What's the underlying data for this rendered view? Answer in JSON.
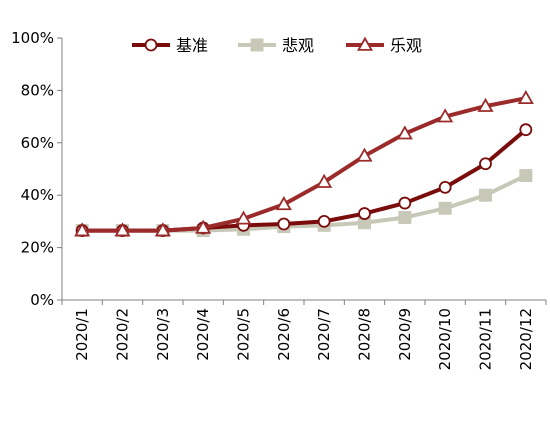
{
  "chart_data": {
    "type": "line",
    "title": "",
    "xlabel": "",
    "ylabel": "",
    "categories": [
      "2020/1",
      "2020/2",
      "2020/3",
      "2020/4",
      "2020/5",
      "2020/6",
      "2020/7",
      "2020/8",
      "2020/9",
      "2020/10",
      "2020/11",
      "2020/12"
    ],
    "y_ticks": [
      "0%",
      "20%",
      "40%",
      "60%",
      "80%",
      "100%"
    ],
    "ylim": [
      0,
      100
    ],
    "grid": false,
    "legend_position": "top",
    "series": [
      {
        "name": "基准",
        "marker": "circle",
        "color": "#7b0c0c",
        "values": [
          26.5,
          26.5,
          26.5,
          27.5,
          28.5,
          29,
          30,
          33,
          37,
          43,
          52,
          65
        ]
      },
      {
        "name": "悲观",
        "marker": "square",
        "color": "#c8c8b8",
        "values": [
          26.5,
          26.5,
          26.5,
          26.5,
          27,
          28,
          28.5,
          29.5,
          31.5,
          35,
          40,
          47.5
        ]
      },
      {
        "name": "乐观",
        "marker": "triangle",
        "color": "#9b2b2b",
        "values": [
          26.5,
          26.5,
          26.5,
          27.5,
          31,
          36.5,
          45,
          55,
          63.5,
          70,
          74,
          77
        ]
      }
    ]
  }
}
